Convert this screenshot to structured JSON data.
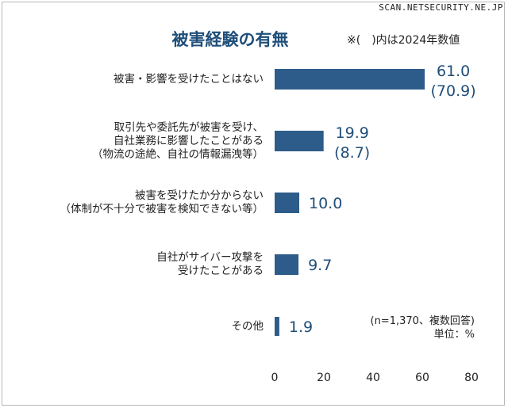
{
  "watermark": "SCAN.NETSECURITY.NE.JP",
  "note": "※(　)内は2024年数値",
  "footnote": {
    "n": "(n=1,370、複数回答)",
    "unit": "単位：%"
  },
  "colors": {
    "bar": "#2e5c8a",
    "title": "#1f4e79",
    "value_text": "#1f4e79"
  },
  "chart_data": {
    "type": "bar",
    "orientation": "horizontal",
    "title": "被害経験の有無",
    "categories": [
      [
        "被害・影響を受けたことはない"
      ],
      [
        "取引先や委託先が被害を受け、",
        "自社業務に影響したことがある",
        "（物流の途絶、自社の情報漏洩等）"
      ],
      [
        "被害を受けたか分からない",
        "（体制が不十分で被害を検知できない等）"
      ],
      [
        "自社がサイバー攻撃を",
        "受けたことがある"
      ],
      [
        "その他"
      ]
    ],
    "series": [
      {
        "values": [
          61.0,
          19.9,
          10.0,
          9.7,
          1.9
        ]
      }
    ],
    "value_labels": [
      "61.0",
      "19.9",
      "10.0",
      "9.7",
      "1.9"
    ],
    "prev_labels": [
      "(70.9)",
      "(8.7)",
      null,
      null,
      null
    ],
    "xlim": [
      0,
      80
    ],
    "xticks": [
      0,
      20,
      40,
      60,
      80
    ],
    "grid": false,
    "legend": "none"
  }
}
